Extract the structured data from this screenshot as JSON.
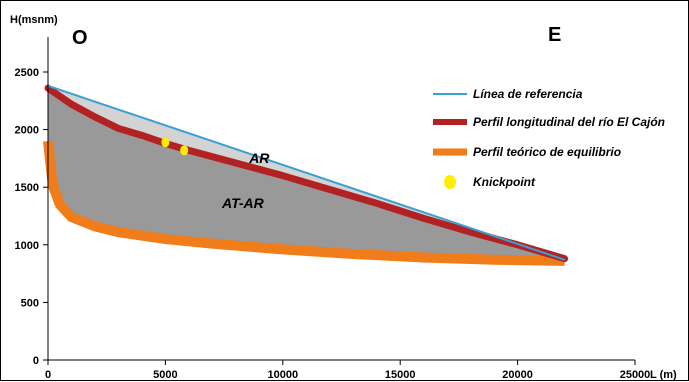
{
  "chart_data": {
    "type": "line",
    "ylabel": "H(msnm)",
    "xlabel": "L (m)",
    "xlim": [
      0,
      25000
    ],
    "ylim": [
      0,
      2500
    ],
    "x_ticks": [
      0,
      5000,
      10000,
      15000,
      20000,
      25000
    ],
    "y_ticks": [
      0,
      500,
      1000,
      1500,
      2000,
      2500
    ],
    "grid": false,
    "legend_position": "right",
    "direction_labels": {
      "west": "O",
      "east": "E"
    },
    "series": [
      {
        "name": "Línea de referencia",
        "color": "#3aa0d4",
        "x": [
          0,
          22000
        ],
        "y": [
          2380,
          870
        ]
      },
      {
        "name": "Perfil longitudinal del río El Cajón",
        "color": "#b22222",
        "x": [
          0,
          1000,
          2000,
          3000,
          4000,
          5000,
          6000,
          8000,
          10000,
          12000,
          14000,
          16000,
          18000,
          20000,
          22000
        ],
        "y": [
          2360,
          2220,
          2110,
          2010,
          1950,
          1880,
          1820,
          1710,
          1600,
          1480,
          1360,
          1230,
          1110,
          1000,
          880
        ]
      },
      {
        "name": "Perfil teórico de equilibrio",
        "color": "#f07c1a",
        "x": [
          0,
          200,
          500,
          1000,
          2000,
          3000,
          5000,
          7000,
          10000,
          13000,
          16000,
          19000,
          22000
        ],
        "y": [
          1900,
          1520,
          1350,
          1240,
          1160,
          1110,
          1050,
          1010,
          960,
          920,
          890,
          870,
          860
        ]
      }
    ],
    "knickpoints": {
      "name": "Knickpoint",
      "color": "#ffee00",
      "x": [
        5000,
        5800
      ],
      "y": [
        1890,
        1820
      ]
    },
    "annotations": [
      {
        "text": "AR",
        "x": 9000,
        "y": 1710
      },
      {
        "text": "AT-AR",
        "x": 8300,
        "y": 1320
      }
    ]
  }
}
